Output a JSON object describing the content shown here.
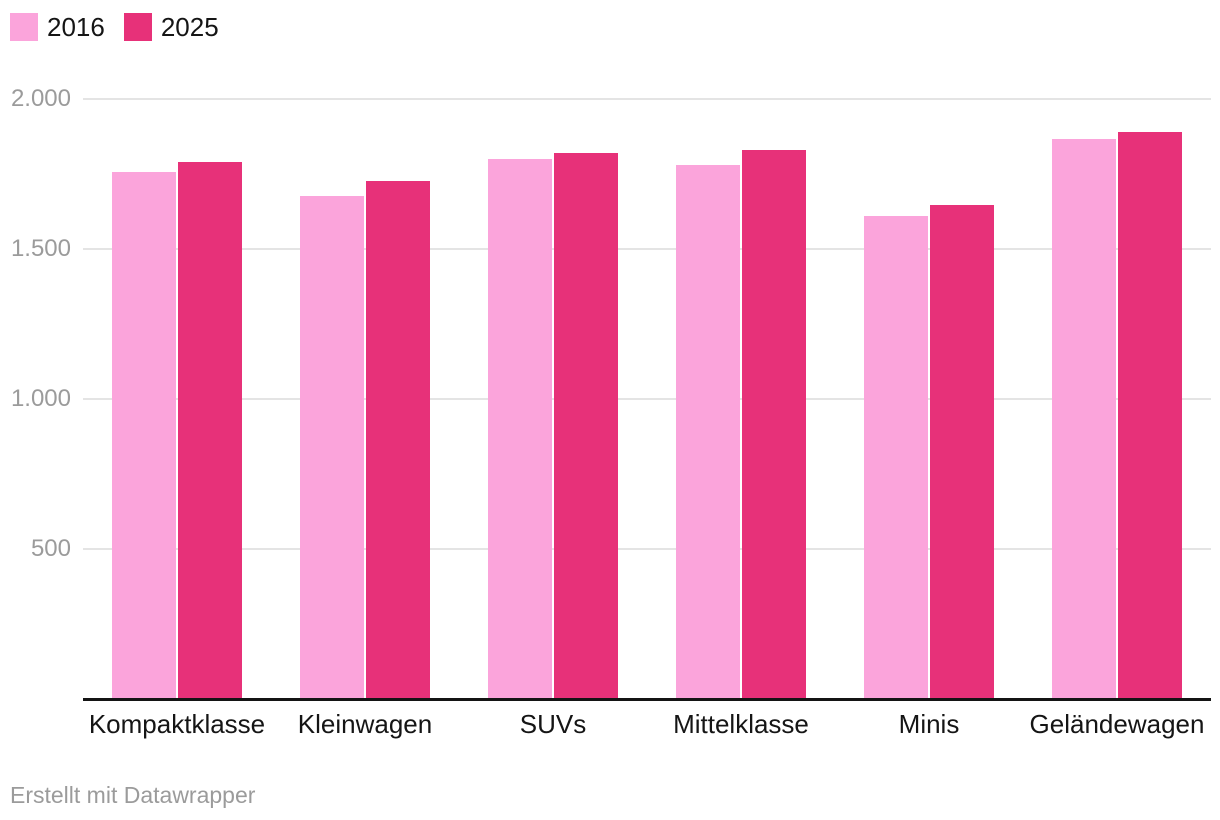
{
  "footer": {
    "attribution": "Erstellt mit Datawrapper"
  },
  "chart_data": {
    "type": "bar",
    "title": "",
    "xlabel": "",
    "ylabel": "",
    "categories": [
      "Kompaktklasse",
      "Kleinwagen",
      "SUVs",
      "Mittelklasse",
      "Minis",
      "Geländewagen"
    ],
    "series": [
      {
        "name": "2016",
        "color": "#fba4db",
        "values": [
          1755,
          1675,
          1800,
          1780,
          1610,
          1865
        ]
      },
      {
        "name": "2025",
        "color": "#e73179",
        "values": [
          1790,
          1725,
          1820,
          1830,
          1645,
          1890
        ]
      }
    ],
    "ylim": [
      0,
      2000
    ],
    "yticks": [
      {
        "value": 2000,
        "label": "2.000"
      },
      {
        "value": 1500,
        "label": "1.500"
      },
      {
        "value": 1000,
        "label": "1.000"
      },
      {
        "value": 500,
        "label": "500"
      }
    ],
    "grid": true,
    "legend_position": "top-left",
    "axis_color": "#9b9b9b",
    "gridline_color": "#e4e4e4",
    "baseline_color": "#141414"
  }
}
